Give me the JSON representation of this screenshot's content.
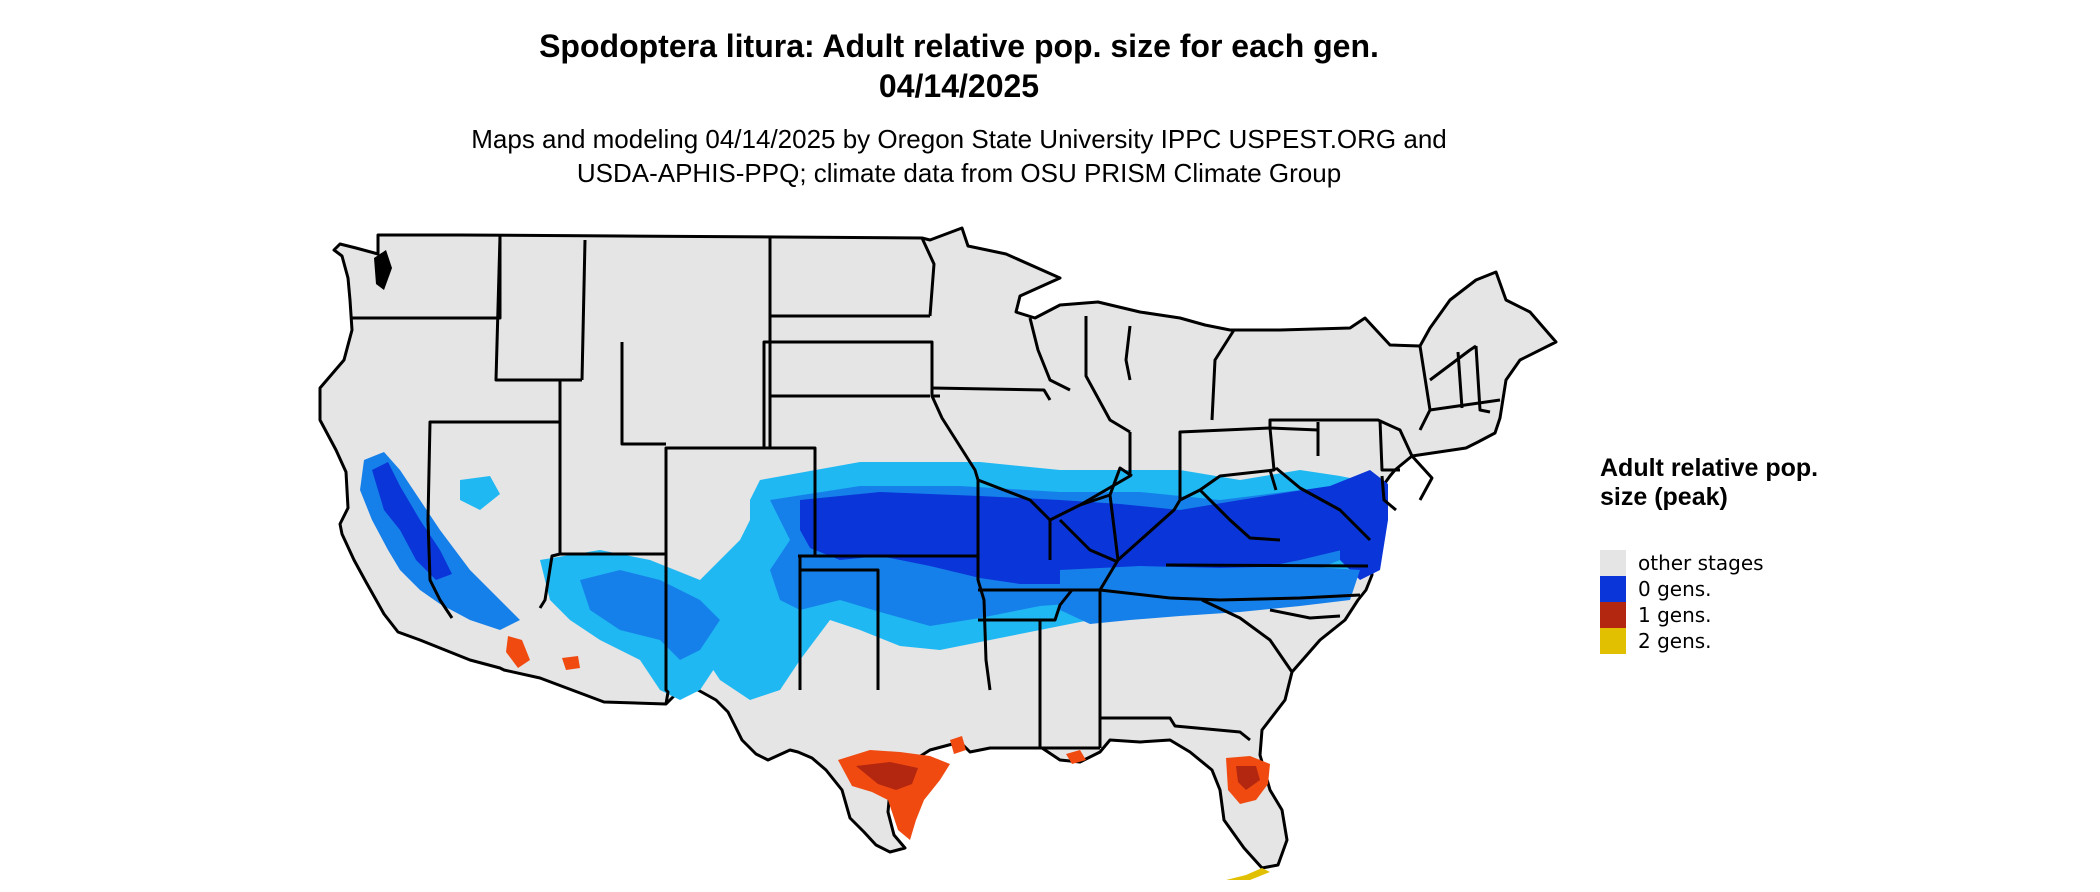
{
  "title": {
    "line1": "Spodoptera litura: Adult relative pop. size for each gen.",
    "line2": "04/14/2025"
  },
  "subtitle": {
    "line1": "Maps and modeling 04/14/2025 by Oregon State University IPPC USPEST.ORG and",
    "line2": "USDA-APHIS-PPQ; climate data from OSU PRISM Climate Group"
  },
  "legend": {
    "title": "Adult relative pop. size (peak)",
    "items": [
      {
        "label": "other stages",
        "color": "#e5e5e5"
      },
      {
        "label": "0 gens.",
        "color": "#0a35d8"
      },
      {
        "label": "1 gens.",
        "color": "#b3260f"
      },
      {
        "label": "2 gens.",
        "color": "#e0c000"
      }
    ]
  },
  "colors": {
    "land": "#e5e5e5",
    "border": "#000000",
    "zero_gen_dark": "#0a35d8",
    "zero_gen_mid": "#1680ea",
    "zero_gen_light": "#1fb8f2",
    "one_gen_dark": "#b3260f",
    "one_gen_bright": "#f04a10",
    "two_gen": "#e0c000"
  }
}
